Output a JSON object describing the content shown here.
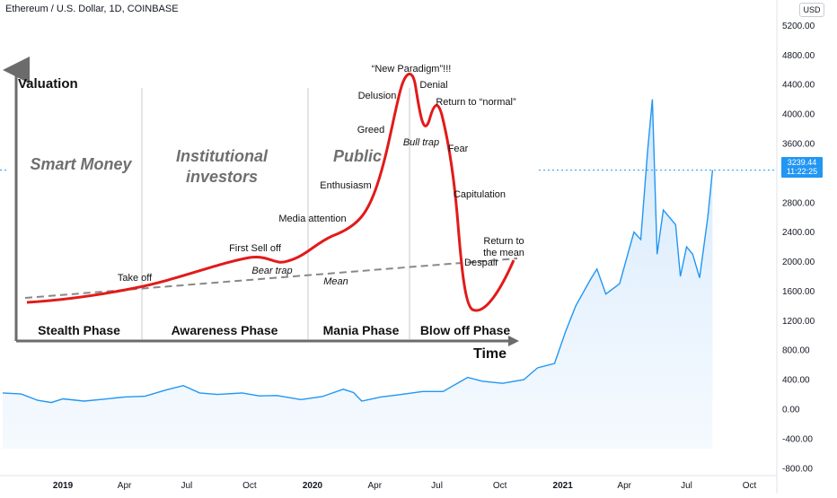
{
  "header": {
    "symbol_title": "Ethereum / U.S. Dollar, 1D, COINBASE",
    "currency": "USD"
  },
  "price_tag": {
    "price": "3239.44",
    "countdown": "11:22:25"
  },
  "colors": {
    "line": "#2196f3",
    "area": "#e3f1fd",
    "tag": "#2196f3",
    "curve": "#e21a1a"
  },
  "chart_data": [
    {
      "type": "area",
      "title": "Ethereum / U.S. Dollar, 1D, COINBASE",
      "y_ticks": [
        "5200.00",
        "4800.00",
        "4400.00",
        "4000.00",
        "3600.00",
        "3200.00",
        "2800.00",
        "2400.00",
        "2000.00",
        "1600.00",
        "1200.00",
        "800.00",
        "400.00",
        "0.00",
        "-400.00",
        "-800.00"
      ],
      "ylim": [
        -900,
        5400
      ],
      "x_ticks": [
        "2019",
        "Apr",
        "Jul",
        "Oct",
        "2020",
        "Apr",
        "Jul",
        "Oct",
        "2021",
        "Apr",
        "Jul",
        "Oct"
      ],
      "x_tick_dates": [
        "2019-01-01",
        "2019-04-01",
        "2019-07-01",
        "2019-10-01",
        "2020-01-01",
        "2020-04-01",
        "2020-07-01",
        "2020-10-01",
        "2021-01-01",
        "2021-04-01",
        "2021-07-01",
        "2021-10-01"
      ],
      "last_price": 3239.44,
      "series": [
        {
          "points": [
            [
              "2018-10-05",
              220
            ],
            [
              "2018-11-01",
              205
            ],
            [
              "2018-11-25",
              120
            ],
            [
              "2018-12-15",
              90
            ],
            [
              "2019-01-01",
              140
            ],
            [
              "2019-02-01",
              110
            ],
            [
              "2019-03-01",
              135
            ],
            [
              "2019-04-01",
              165
            ],
            [
              "2019-05-01",
              175
            ],
            [
              "2019-06-01",
              260
            ],
            [
              "2019-06-26",
              320
            ],
            [
              "2019-07-20",
              220
            ],
            [
              "2019-08-15",
              200
            ],
            [
              "2019-09-20",
              220
            ],
            [
              "2019-10-15",
              180
            ],
            [
              "2019-11-10",
              185
            ],
            [
              "2019-12-15",
              130
            ],
            [
              "2020-01-15",
              170
            ],
            [
              "2020-02-15",
              270
            ],
            [
              "2020-03-01",
              225
            ],
            [
              "2020-03-13",
              110
            ],
            [
              "2020-04-10",
              165
            ],
            [
              "2020-05-10",
              200
            ],
            [
              "2020-06-10",
              240
            ],
            [
              "2020-07-10",
              240
            ],
            [
              "2020-08-15",
              430
            ],
            [
              "2020-09-05",
              380
            ],
            [
              "2020-10-05",
              350
            ],
            [
              "2020-11-05",
              400
            ],
            [
              "2020-11-25",
              560
            ],
            [
              "2020-12-20",
              620
            ],
            [
              "2021-01-05",
              1050
            ],
            [
              "2021-01-20",
              1400
            ],
            [
              "2021-02-10",
              1750
            ],
            [
              "2021-02-20",
              1900
            ],
            [
              "2021-03-05",
              1560
            ],
            [
              "2021-03-25",
              1700
            ],
            [
              "2021-04-15",
              2400
            ],
            [
              "2021-04-25",
              2300
            ],
            [
              "2021-05-05",
              3500
            ],
            [
              "2021-05-12",
              4200
            ],
            [
              "2021-05-19",
              2100
            ],
            [
              "2021-05-28",
              2700
            ],
            [
              "2021-06-15",
              2500
            ],
            [
              "2021-06-22",
              1800
            ],
            [
              "2021-07-01",
              2200
            ],
            [
              "2021-07-10",
              2100
            ],
            [
              "2021-07-20",
              1780
            ],
            [
              "2021-08-01",
              2600
            ],
            [
              "2021-08-08",
              3239.44
            ]
          ]
        }
      ]
    },
    {
      "type": "line",
      "title": "",
      "ylabel": "Valuation",
      "xlabel": "Time",
      "phases": [
        "Stealth Phase",
        "Awareness Phase",
        "Mania Phase",
        "Blow off Phase"
      ],
      "participants": [
        "Smart Money",
        "Institutional investors",
        "Public"
      ],
      "annotations": [
        "Take off",
        "First Sell off",
        "Bear trap",
        "Media attention",
        "Enthusiasm",
        "Greed",
        "Delusion",
        "“New Paradigm”!!!",
        "Denial",
        "Bull trap",
        "Return to “normal”",
        "Fear",
        "Capitulation",
        "Despair",
        "Return to the mean",
        "Mean"
      ]
    }
  ]
}
